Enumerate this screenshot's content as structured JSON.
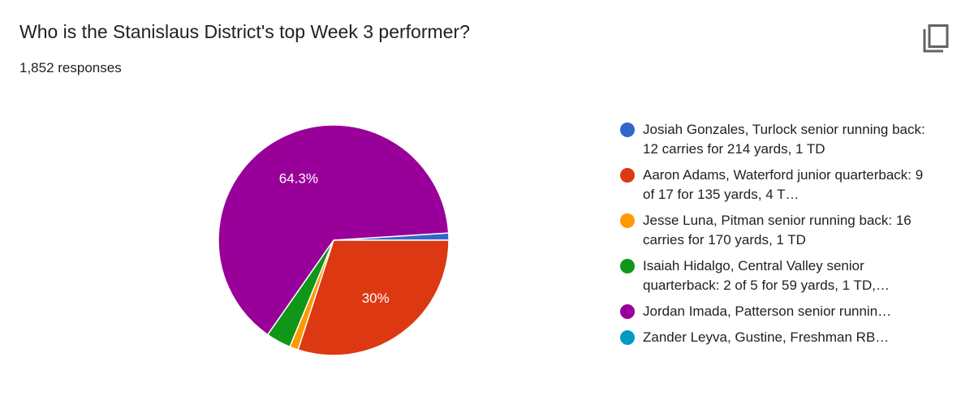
{
  "header": {
    "title": "Who is the Stanislaus District's top Week 3 performer?",
    "responses": "1,852 responses"
  },
  "toolbar": {
    "copy_icon": "copy-icon"
  },
  "chart_data": {
    "type": "pie",
    "title": "Who is the Stanislaus District's top Week 3 performer?",
    "total_responses": 1852,
    "legend_position": "right",
    "slices": [
      {
        "label": "Josiah Gonzales, Turlock senior running back: 12 carries for 214 yards, 1 TD",
        "legend_text": "Josiah Gonzales, Turlock senior running back: 12 carries for 214 yards, 1 TD",
        "value": 1.0,
        "color": "#3366cc",
        "data_label": ""
      },
      {
        "label": "Aaron Adams, Waterford junior quarterback: 9 of 17 for 135 yards, 4 T...",
        "legend_text": "Aaron Adams, Waterford junior quarterback: 9 of 17 for 135 yards, 4 T…",
        "value": 30.0,
        "color": "#dc3912",
        "data_label": "30%"
      },
      {
        "label": "Jesse Luna, Pitman senior running back: 16 carries for 170 yards, 1 TD",
        "legend_text": "Jesse Luna, Pitman senior running back: 16 carries for 170 yards, 1 TD",
        "value": 1.2,
        "color": "#ff9900",
        "data_label": ""
      },
      {
        "label": "Isaiah Hidalgo, Central Valley senior quarterback: 2 of 5 for 59 yards, 1 TD,...",
        "legend_text": "Isaiah Hidalgo, Central Valley senior quarterback: 2 of 5 for 59 yards, 1 TD,…",
        "value": 3.5,
        "color": "#109618",
        "data_label": ""
      },
      {
        "label": "Jordan Imada, Patterson senior runnin...",
        "legend_text": "Jordan Imada, Patterson senior runnin…",
        "value": 64.3,
        "color": "#990099",
        "data_label": "64.3%"
      },
      {
        "label": "Zander Leyva, Gustine, Freshman RB...",
        "legend_text": "Zander Leyva, Gustine, Freshman RB…",
        "value": 0.0,
        "color": "#0099c6",
        "data_label": ""
      }
    ]
  }
}
